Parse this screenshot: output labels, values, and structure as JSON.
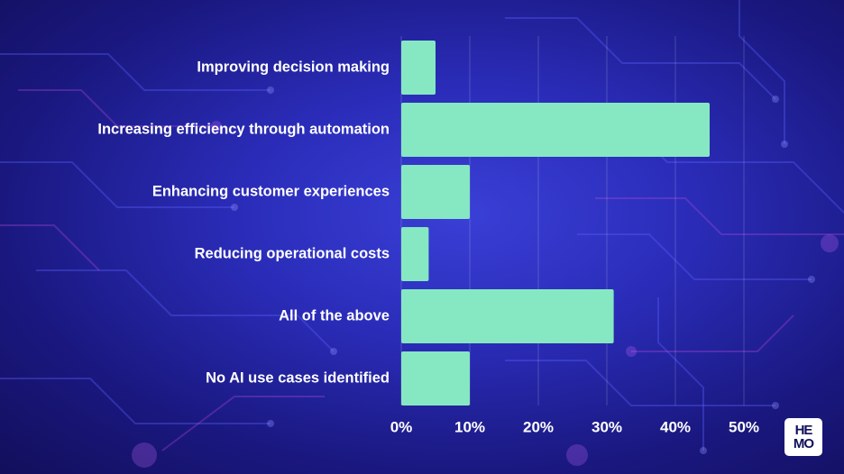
{
  "chart_data": {
    "type": "bar",
    "orientation": "horizontal",
    "categories": [
      "Improving decision making",
      "Increasing efficiency through automation",
      "Enhancing customer experiences",
      "Reducing operational costs",
      "All of the above",
      "No AI use cases identified"
    ],
    "values": [
      5,
      45,
      10,
      4,
      31,
      10
    ],
    "xlim": [
      0,
      50
    ],
    "xticks": [
      "0%",
      "10%",
      "20%",
      "30%",
      "40%",
      "50%"
    ],
    "grid": true,
    "title": "",
    "xlabel": "",
    "ylabel": ""
  },
  "colors": {
    "bar": "#86e8c2",
    "label": "#ffffff",
    "grid": "rgba(255,255,255,0.18)"
  },
  "logo": {
    "line1": "HE",
    "line2": "MO"
  }
}
